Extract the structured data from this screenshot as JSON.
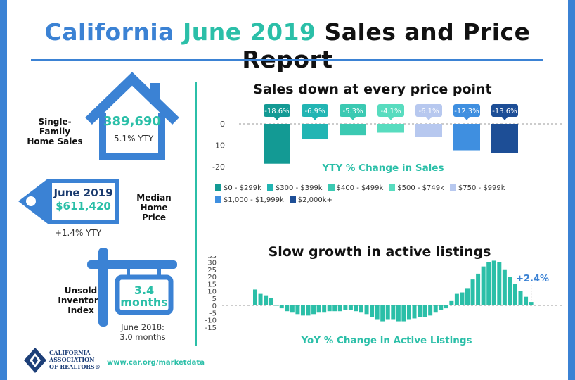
{
  "header": {
    "title_part1": "California",
    "title_part2": "June 2019",
    "title_part3": "Sales and Price Report"
  },
  "stats": {
    "home_sales_label_line1": "Single-Family",
    "home_sales_label_line2": "Home Sales",
    "home_sales_value": "389,690",
    "home_sales_change": "-5.1% YTY",
    "price_tag_month": "June 2019",
    "price_tag_value": "$611,420",
    "median_label_line1": "Median Home",
    "median_label_line2": "Price",
    "median_change": "+1.4% YTY",
    "uii_label_line1": "Unsold",
    "uii_label_line2": "Inventory",
    "uii_label_line3": "Index",
    "uii_value": "3.4",
    "uii_unit": "months",
    "uii_prev_line1": "June 2018:",
    "uii_prev_line2": "3.0 months"
  },
  "footer": {
    "org_line1": "CALIFORNIA",
    "org_line2": "ASSOCIATION",
    "org_line3": "OF REALTORS®",
    "url": "www.car.org/marketdata"
  },
  "colors": {
    "blue": "#3b82d4",
    "teal": "#2bbfa8",
    "price_colors": [
      "#139a94",
      "#22b5b3",
      "#3bc9b2",
      "#58dcbf",
      "#b7c8ef",
      "#3f8fe0",
      "#1d4e96"
    ]
  },
  "chart_data": [
    {
      "type": "bar",
      "title": "Sales down at every price point",
      "xlabel": "YTY % Change in Sales",
      "categories": [
        "$0 - $299k",
        "$300 - $399k",
        "$400 - $499k",
        "$500 - $749k",
        "$750 - $999k",
        "$1,000 - $1,999k",
        "$2,000k+"
      ],
      "values": [
        -18.6,
        -6.9,
        -5.3,
        -4.1,
        -6.1,
        -12.3,
        -13.6
      ],
      "data_labels": [
        "-18.6%",
        "-6.9%",
        "-5.3%",
        "-4.1%",
        "-6.1%",
        "-12.3%",
        "-13.6%"
      ],
      "yticks": [
        "0",
        "-10",
        "-20"
      ],
      "ylim": [
        -20,
        0
      ],
      "legend": "bottom",
      "grid": false
    },
    {
      "type": "bar",
      "title": "Slow growth in active listings",
      "xlabel": "YoY % Change in Active Listings",
      "yticks": [
        "35",
        "30",
        "25",
        "20",
        "15",
        "10",
        "5",
        "0",
        "-5",
        "-10",
        "-15"
      ],
      "ylim": [
        -15,
        35
      ],
      "values": [
        11,
        8,
        7,
        5,
        0,
        -2,
        -4,
        -5,
        -6,
        -7,
        -7,
        -6,
        -5,
        -5,
        -4,
        -4,
        -4,
        -3,
        -3,
        -4,
        -5,
        -6,
        -8,
        -10,
        -11,
        -10,
        -10,
        -11,
        -11,
        -10,
        -9,
        -8,
        -8,
        -7,
        -5,
        -3,
        -2,
        3,
        8,
        9,
        12,
        18,
        22,
        27,
        30,
        31,
        30,
        25,
        20,
        15,
        10,
        6,
        2.4
      ],
      "annotation": "+2.4%",
      "grid": false
    }
  ]
}
